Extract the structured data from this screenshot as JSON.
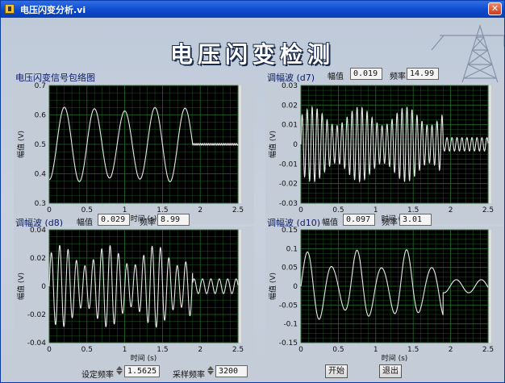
{
  "window": {
    "title": "电压闪变分析.vi",
    "close_symbol": "✕"
  },
  "main_title": "电压闪变检测",
  "graphs": [
    {
      "id": "g1",
      "label": "电压闪变信号包络图",
      "xlabel": "时间 (s)",
      "ylabel": "幅值 (V)",
      "x_ticks": [
        "0",
        "0.5",
        "1",
        "1.5",
        "2",
        "2.5"
      ],
      "y_ticks": [
        "0.7",
        "0.6",
        "0.5",
        "0.4",
        "0.3"
      ]
    },
    {
      "id": "g2",
      "label": "调幅波 (d7)",
      "amp_label": "幅值",
      "amp_value": "0.019",
      "freq_label": "频率",
      "freq_value": "14.99",
      "xlabel": "时间 (s)",
      "ylabel": "幅值 (V)",
      "x_ticks": [
        "0",
        "0.5",
        "1",
        "1.5",
        "2",
        "2.5"
      ],
      "y_ticks": [
        "0.03",
        "0.02",
        "0.01",
        "0",
        "-0.01",
        "-0.02",
        "-0.03"
      ]
    },
    {
      "id": "g3",
      "label": "调幅波 (d8)",
      "amp_label": "幅值",
      "amp_value": "0.029",
      "freq_label": "频率",
      "freq_value": "8.99",
      "xlabel": "时间 (s)",
      "ylabel": "幅值 (V)",
      "x_ticks": [
        "0",
        "0.5",
        "1",
        "1.5",
        "2",
        "2.5"
      ],
      "y_ticks": [
        "0.04",
        "0.02",
        "0",
        "-0.02",
        "-0.04"
      ]
    },
    {
      "id": "g4",
      "label": "调幅波 (d10)",
      "amp_label": "幅值",
      "amp_value": "0.097",
      "freq_label": "频率",
      "freq_value": "3.01",
      "xlabel": "时间 (s)",
      "ylabel": "幅值 (V)",
      "x_ticks": [
        "0",
        "0.5",
        "1",
        "1.5",
        "2",
        "2.5"
      ],
      "y_ticks": [
        "0.15",
        "0.1",
        "0.05",
        "0",
        "-0.05",
        "-0.1",
        "-0.15"
      ]
    }
  ],
  "controls": {
    "set_freq_label": "设定频率",
    "set_freq_value": "1.5625",
    "sample_freq_label": "采样频率",
    "sample_freq_value": "3200",
    "start_button": "开始",
    "exit_button": "退出"
  },
  "colors": {
    "plot_bg": "#000000",
    "grid": "#1f6b2a",
    "trace": "#e8e8e8",
    "panel": "#c4ccd8"
  },
  "chart_data": [
    {
      "type": "line",
      "title": "电压闪变信号包络图",
      "xlabel": "时间 (s)",
      "ylabel": "幅值 (V)",
      "xlim": [
        0,
        2.5
      ],
      "ylim": [
        0.3,
        0.7
      ],
      "series": [
        {
          "kind": "envelope",
          "points": [
            [
              0,
              0.49
            ],
            [
              0.1,
              0.62
            ],
            [
              0.2,
              0.38
            ],
            [
              0.3,
              0.62
            ],
            [
              0.4,
              0.38
            ],
            [
              0.5,
              0.62
            ],
            [
              0.6,
              0.38
            ],
            [
              0.7,
              0.62
            ],
            [
              0.8,
              0.38
            ],
            [
              0.9,
              0.62
            ],
            [
              1.0,
              0.38
            ],
            [
              1.1,
              0.62
            ],
            [
              1.2,
              0.38
            ],
            [
              1.3,
              0.62
            ],
            [
              1.4,
              0.38
            ],
            [
              1.5,
              0.62
            ],
            [
              1.6,
              0.38
            ],
            [
              1.7,
              0.62
            ],
            [
              1.8,
              0.38
            ],
            [
              1.9,
              0.5
            ],
            [
              2.0,
              0.5
            ],
            [
              2.5,
              0.5
            ]
          ]
        }
      ]
    },
    {
      "type": "line",
      "title": "调幅波 (d7)",
      "xlabel": "时间 (s)",
      "ylabel": "幅值 (V)",
      "xlim": [
        0,
        2.5
      ],
      "ylim": [
        -0.03,
        0.03
      ],
      "series": [
        {
          "kind": "am_wave",
          "amplitude": 0.019,
          "frequency": 14.99,
          "active_until": 1.9
        }
      ]
    },
    {
      "type": "line",
      "title": "调幅波 (d8)",
      "xlabel": "时间 (s)",
      "ylabel": "幅值 (V)",
      "xlim": [
        0,
        2.5
      ],
      "ylim": [
        -0.04,
        0.04
      ],
      "series": [
        {
          "kind": "am_wave",
          "amplitude": 0.029,
          "frequency": 8.99,
          "active_until": 1.9
        }
      ]
    },
    {
      "type": "line",
      "title": "调幅波 (d10)",
      "xlabel": "时间 (s)",
      "ylabel": "幅值 (V)",
      "xlim": [
        0,
        2.5
      ],
      "ylim": [
        -0.15,
        0.15
      ],
      "series": [
        {
          "kind": "am_wave",
          "amplitude": 0.097,
          "frequency": 3.01,
          "active_until": 1.9
        }
      ]
    }
  ]
}
